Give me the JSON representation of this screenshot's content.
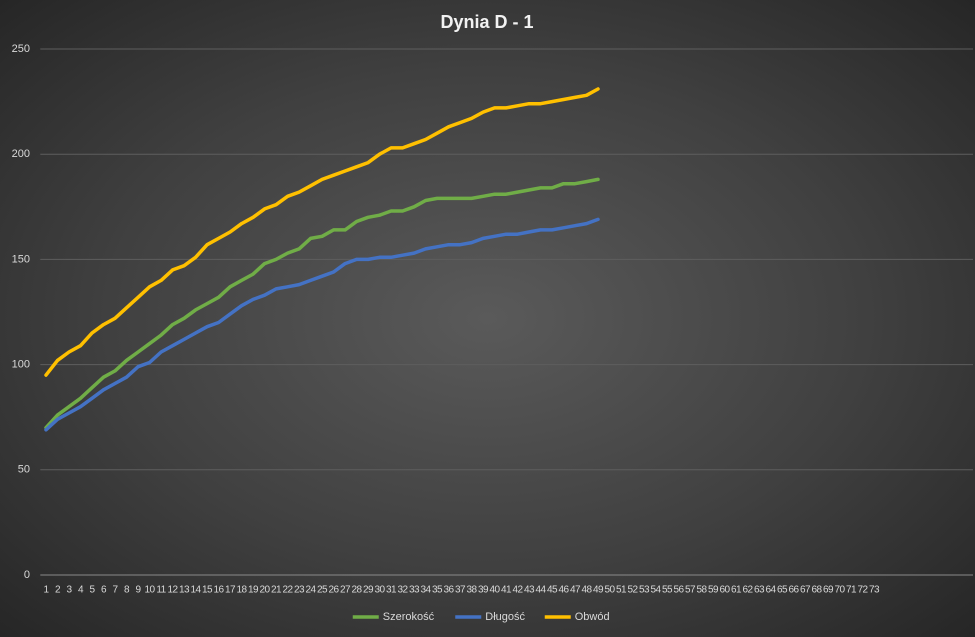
{
  "chart_data": {
    "type": "line",
    "title": "Dynia  D - 1",
    "categories": [
      1,
      2,
      3,
      4,
      5,
      6,
      7,
      8,
      9,
      10,
      11,
      12,
      13,
      14,
      15,
      16,
      17,
      18,
      19,
      20,
      21,
      22,
      23,
      24,
      25,
      26,
      27,
      28,
      29,
      30,
      31,
      32,
      33,
      34,
      35,
      36,
      37,
      38,
      39,
      40,
      41,
      42,
      43,
      44,
      45,
      46,
      47,
      48,
      49,
      50,
      51,
      52,
      53,
      54,
      55,
      56,
      57,
      58,
      59,
      60,
      61,
      62,
      63,
      64,
      65,
      66,
      67,
      68,
      69,
      70,
      71,
      72,
      73
    ],
    "series": [
      {
        "name": "Szerokość",
        "color": "#70ad47",
        "values": [
          70,
          76,
          80,
          84,
          89,
          94,
          97,
          102,
          106,
          110,
          114,
          119,
          122,
          126,
          129,
          132,
          137,
          140,
          143,
          148,
          150,
          153,
          155,
          160,
          161,
          164,
          164,
          168,
          170,
          171,
          173,
          173,
          175,
          178,
          179,
          179,
          179,
          179,
          180,
          181,
          181,
          182,
          183,
          184,
          184,
          186,
          186,
          187,
          188,
          null,
          null,
          null,
          null,
          null,
          null,
          null,
          null,
          null,
          null,
          null,
          null,
          null,
          null,
          null,
          null,
          null,
          null,
          null,
          null,
          null,
          null,
          null,
          null
        ]
      },
      {
        "name": "Długość",
        "color": "#4472c4",
        "values": [
          69,
          74,
          77,
          80,
          84,
          88,
          91,
          94,
          99,
          101,
          106,
          109,
          112,
          115,
          118,
          120,
          124,
          128,
          131,
          133,
          136,
          137,
          138,
          140,
          142,
          144,
          148,
          150,
          150,
          151,
          151,
          152,
          153,
          155,
          156,
          157,
          157,
          158,
          160,
          161,
          162,
          162,
          163,
          164,
          164,
          165,
          166,
          167,
          169,
          null,
          null,
          null,
          null,
          null,
          null,
          null,
          null,
          null,
          null,
          null,
          null,
          null,
          null,
          null,
          null,
          null,
          null,
          null,
          null,
          null,
          null,
          null,
          null
        ]
      },
      {
        "name": "Obwód",
        "color": "#ffc000",
        "values": [
          95,
          102,
          106,
          109,
          115,
          119,
          122,
          127,
          132,
          137,
          140,
          145,
          147,
          151,
          157,
          160,
          163,
          167,
          170,
          174,
          176,
          180,
          182,
          185,
          188,
          190,
          192,
          194,
          196,
          200,
          203,
          203,
          205,
          207,
          210,
          213,
          215,
          217,
          220,
          222,
          222,
          223,
          224,
          224,
          225,
          226,
          227,
          228,
          231,
          null,
          null,
          null,
          null,
          null,
          null,
          null,
          null,
          null,
          null,
          null,
          null,
          null,
          null,
          null,
          null,
          null,
          null,
          null,
          null,
          null,
          null,
          null,
          null
        ]
      }
    ],
    "ylim": [
      0,
      250
    ],
    "yticks": [
      0,
      50,
      100,
      150,
      200,
      250
    ],
    "grid": true,
    "legend": "bottom"
  }
}
